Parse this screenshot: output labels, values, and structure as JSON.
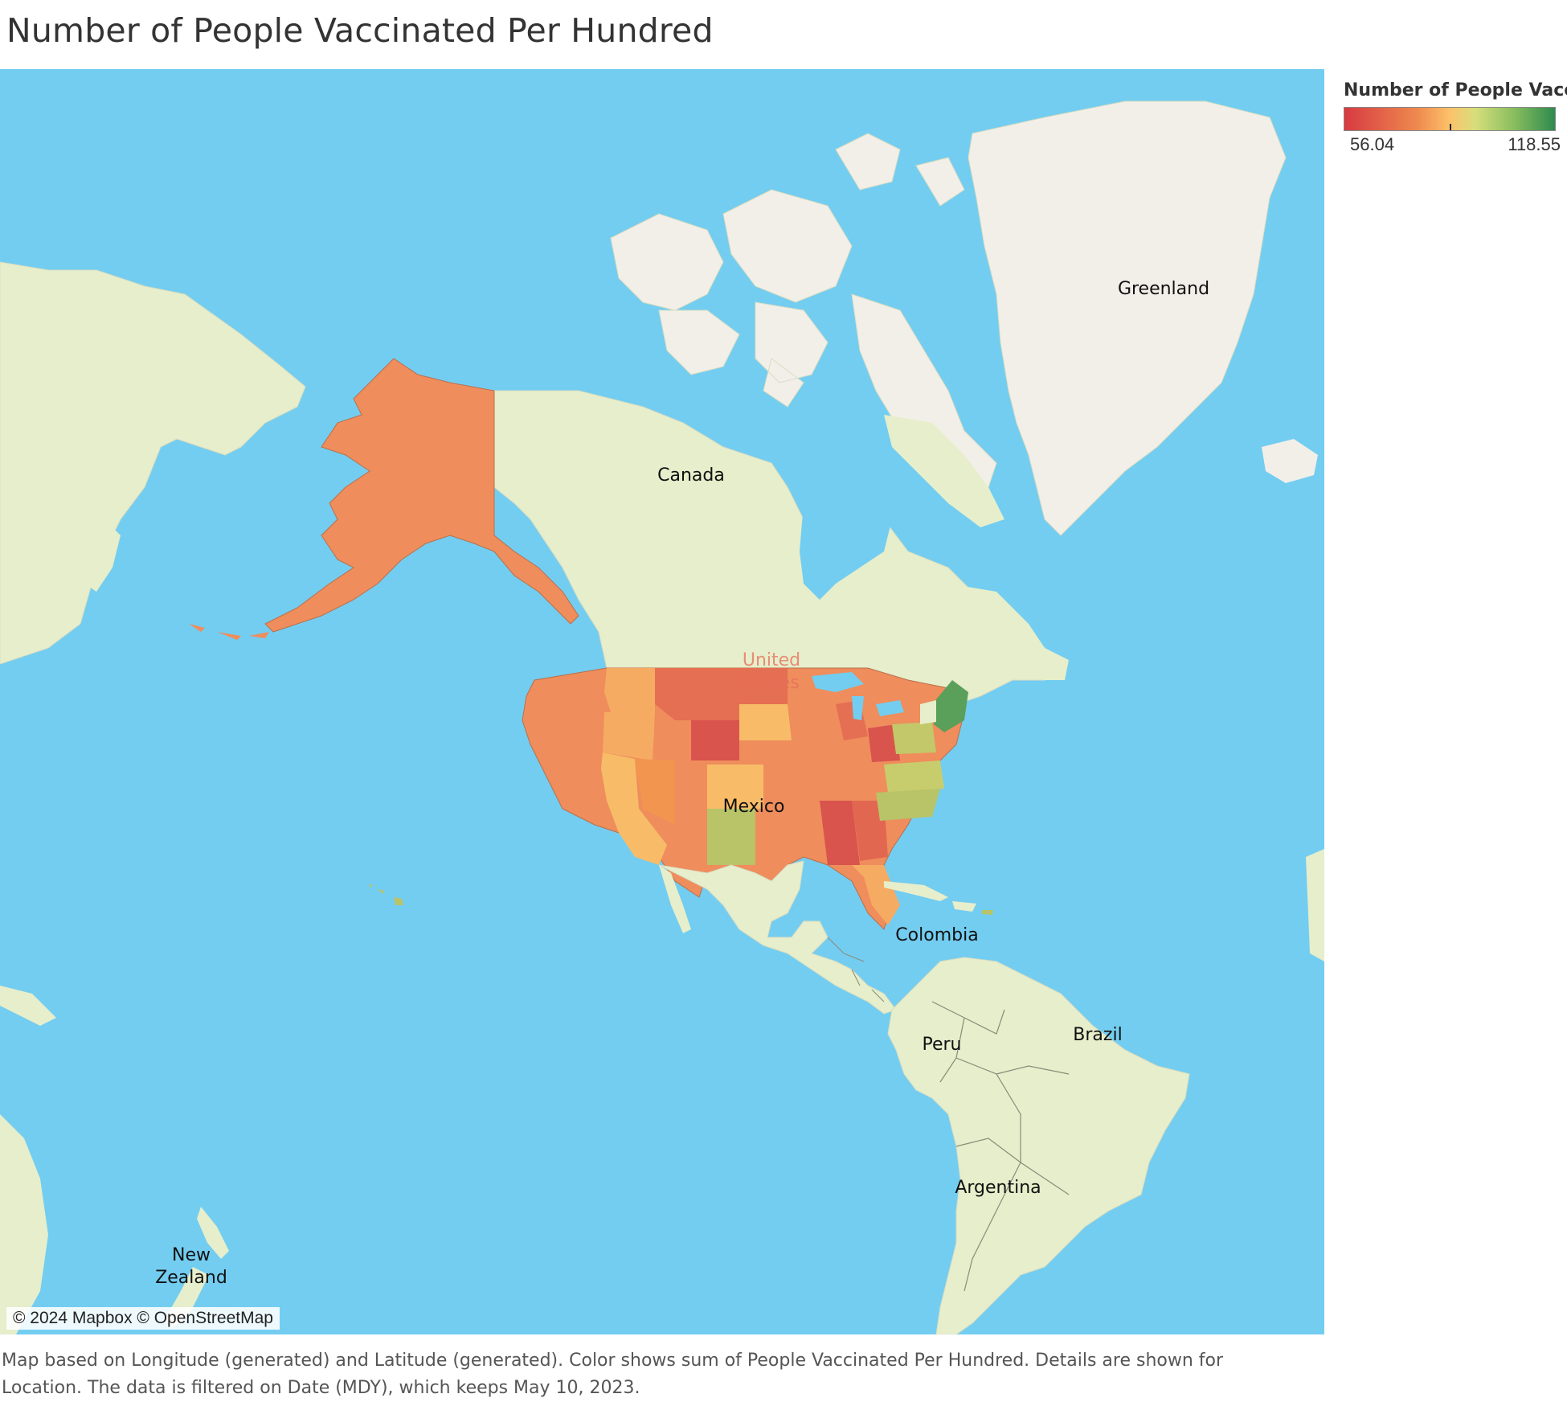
{
  "title": "Number of People Vaccinated Per Hundred",
  "legend": {
    "title": "Number of People Vacci..",
    "min": "56.04",
    "max": "118.55",
    "colors": [
      "#d73a42",
      "#ef8a4f",
      "#fcc26a",
      "#d8de7c",
      "#8bbf5f",
      "#2e8b4e"
    ]
  },
  "map_labels": {
    "greenland": "Greenland",
    "canada": "Canada",
    "united_states": "United\nStates",
    "mexico": "Mexico",
    "colombia": "Colombia",
    "peru": "Peru",
    "brazil": "Brazil",
    "argentina": "Argentina",
    "new_zealand": "New\nZealand"
  },
  "attribution": "© 2024 Mapbox © OpenStreetMap",
  "caption": "Map based on Longitude (generated) and Latitude (generated).  Color shows sum of People Vaccinated Per Hundred.  Details are shown for Location. The data is filtered on Date (MDY), which keeps May 10, 2023.",
  "colors": {
    "ocean": "#73cdf0",
    "land": "#e6eecb",
    "ice": "#f2efe9"
  }
}
